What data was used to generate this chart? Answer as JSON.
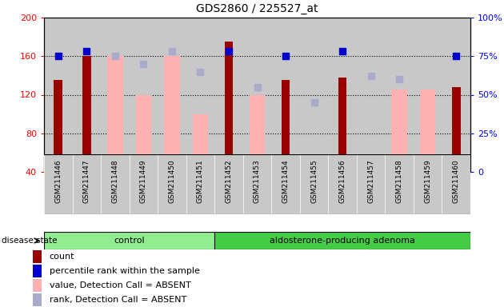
{
  "title": "GDS2860 / 225527_at",
  "samples": [
    "GSM211446",
    "GSM211447",
    "GSM211448",
    "GSM211449",
    "GSM211450",
    "GSM211451",
    "GSM211452",
    "GSM211453",
    "GSM211454",
    "GSM211455",
    "GSM211456",
    "GSM211457",
    "GSM211458",
    "GSM211459",
    "GSM211460"
  ],
  "count_values": [
    135,
    160,
    null,
    null,
    null,
    null,
    175,
    null,
    135,
    null,
    138,
    null,
    null,
    null,
    128
  ],
  "count_absent": [
    null,
    null,
    160,
    120,
    160,
    100,
    null,
    120,
    null,
    null,
    null,
    null,
    125,
    125,
    null
  ],
  "rank_present": [
    75,
    78,
    null,
    null,
    null,
    null,
    78,
    null,
    75,
    null,
    78,
    null,
    null,
    null,
    75
  ],
  "rank_absent": [
    null,
    null,
    75,
    70,
    78,
    65,
    null,
    55,
    null,
    45,
    null,
    62,
    60,
    null,
    null
  ],
  "groups": [
    {
      "label": "control",
      "start": 0,
      "end": 5
    },
    {
      "label": "aldosterone-producing adenoma",
      "start": 6,
      "end": 14
    }
  ],
  "ylim_left": [
    40,
    200
  ],
  "ylim_right": [
    0,
    100
  ],
  "yticks_left": [
    40,
    80,
    120,
    160,
    200
  ],
  "yticks_right": [
    0,
    25,
    50,
    75,
    100
  ],
  "dark_red": "#990000",
  "light_red": "#FFB0B0",
  "dark_blue": "#0000CC",
  "light_blue": "#AAAACC",
  "bg_xtick": "#C8C8C8",
  "bg_group_light": "#90EE90",
  "bg_group_dark": "#44CC44",
  "legend_items": [
    {
      "color": "#990000",
      "label": "count"
    },
    {
      "color": "#0000CC",
      "label": "percentile rank within the sample"
    },
    {
      "color": "#FFB0B0",
      "label": "value, Detection Call = ABSENT"
    },
    {
      "color": "#AAAACC",
      "label": "rank, Detection Call = ABSENT"
    }
  ]
}
